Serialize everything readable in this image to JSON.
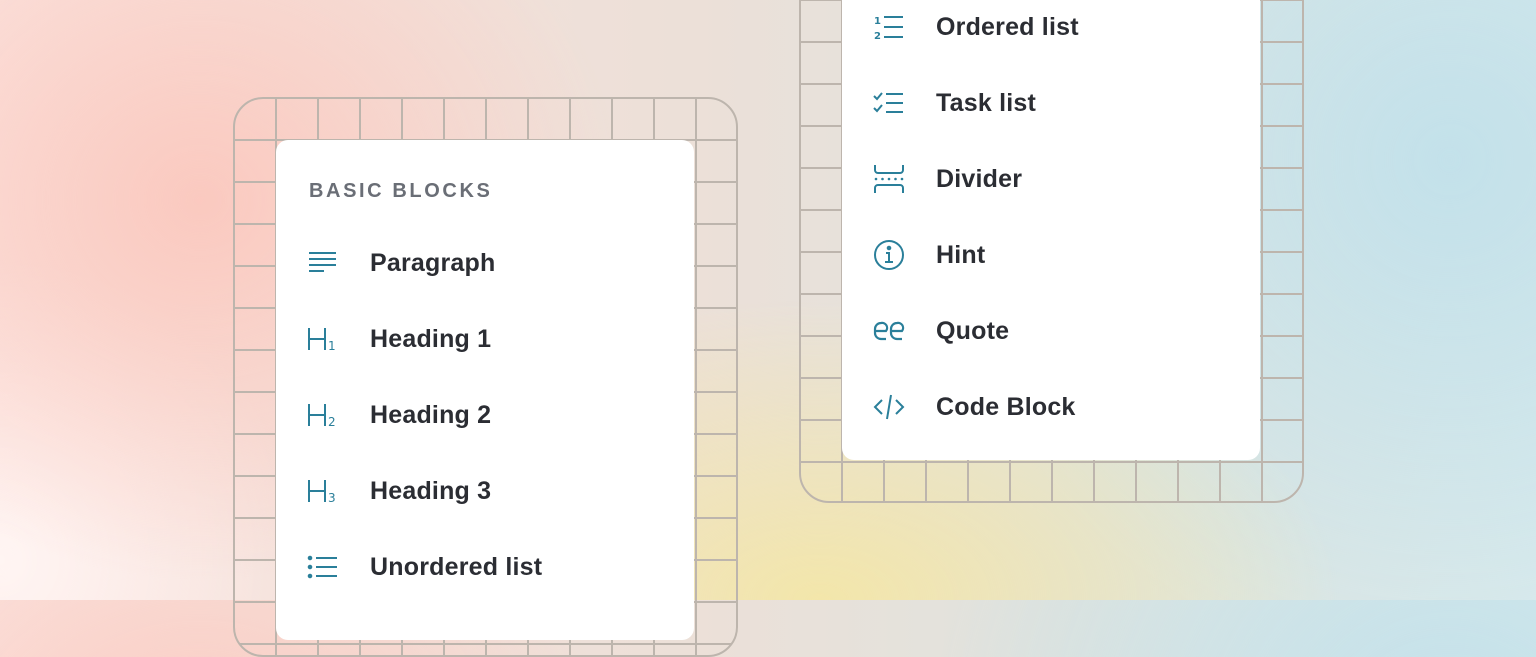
{
  "colors": {
    "icon": "#2a7f9a",
    "text": "#2b2d33",
    "grid": "#bdb5ad"
  },
  "left_menu": {
    "section_title": "BASIC BLOCKS",
    "items": [
      {
        "label": "Paragraph",
        "icon": "paragraph-icon"
      },
      {
        "label": "Heading 1",
        "icon": "heading-1-icon"
      },
      {
        "label": "Heading 2",
        "icon": "heading-2-icon"
      },
      {
        "label": "Heading 3",
        "icon": "heading-3-icon"
      },
      {
        "label": "Unordered list",
        "icon": "unordered-list-icon"
      }
    ]
  },
  "right_menu": {
    "items": [
      {
        "label": "Ordered list",
        "icon": "ordered-list-icon"
      },
      {
        "label": "Task list",
        "icon": "task-list-icon"
      },
      {
        "label": "Divider",
        "icon": "divider-icon"
      },
      {
        "label": "Hint",
        "icon": "info-icon"
      },
      {
        "label": "Quote",
        "icon": "quote-icon"
      },
      {
        "label": "Code Block",
        "icon": "code-icon"
      }
    ]
  }
}
